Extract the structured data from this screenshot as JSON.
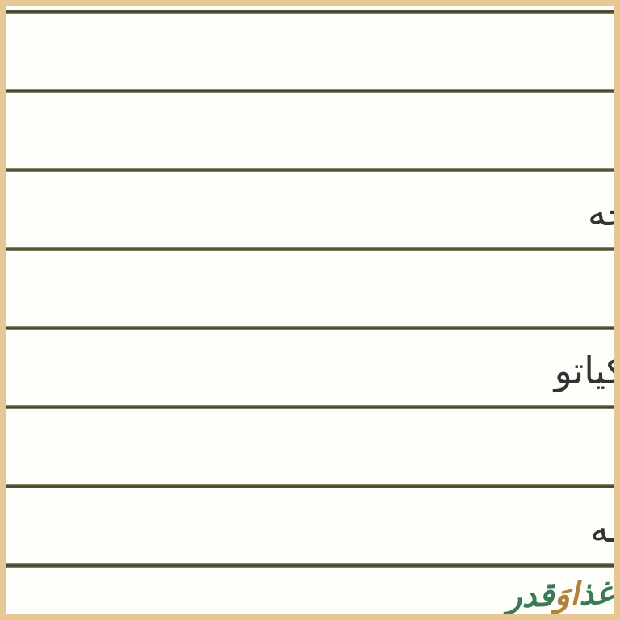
{
  "colors": {
    "frame_border": "#e7c794",
    "background": "#fefefb",
    "rule_dark": "#44442e",
    "rule_light": "#9b9b76",
    "row_text": "#333333",
    "watermark_green": "#3a7a56",
    "watermark_gold": "#b08136"
  },
  "table": {
    "rows": [
      {
        "label": ""
      },
      {
        "label": ""
      },
      {
        "label": "خه"
      },
      {
        "label": ""
      },
      {
        "label": "کیاتو"
      },
      {
        "label": ""
      },
      {
        "label": "ـه"
      }
    ]
  },
  "watermark": {
    "full_text": "غذاوَقدر",
    "segments": [
      {
        "text": "غذ"
      },
      {
        "text": "اوَ"
      },
      {
        "text": "قدر"
      }
    ]
  }
}
